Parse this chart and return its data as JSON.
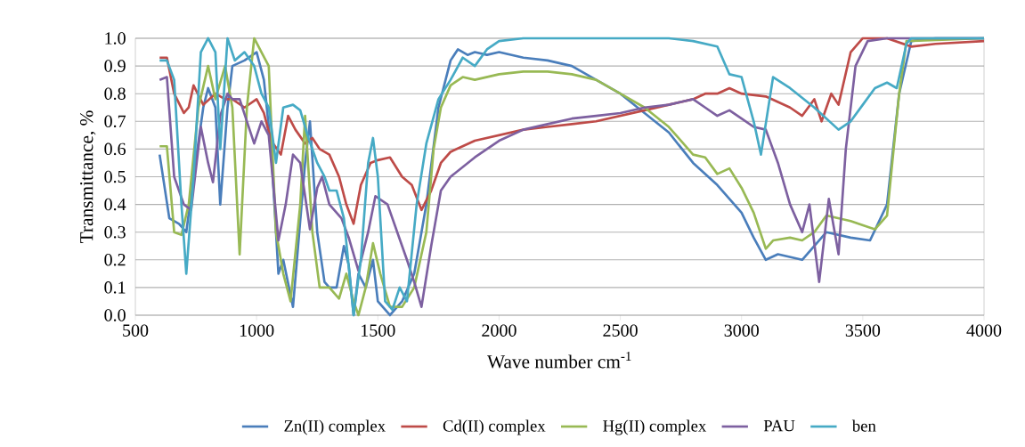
{
  "chart_data": {
    "type": "line",
    "xlabel": "Wave number cm$^{-1}$",
    "ylabel": "Transmittance, %",
    "xlim": [
      500,
      4000
    ],
    "ylim": [
      0,
      1
    ],
    "xticks": [
      500,
      1000,
      1500,
      2000,
      2500,
      3000,
      3500,
      4000
    ],
    "yticks": [
      {
        "value": 0,
        "label": "0.0"
      },
      {
        "value": 0.1,
        "label": "0.1"
      },
      {
        "value": 0.2,
        "label": "0.2"
      },
      {
        "value": 0.3,
        "label": "0.3"
      },
      {
        "value": 0.4,
        "label": "0.4"
      },
      {
        "value": 0.5,
        "label": "0.5"
      },
      {
        "value": 0.6,
        "label": "0.6"
      },
      {
        "value": 0.7,
        "label": "0.7"
      },
      {
        "value": 0.8,
        "label": "0.8"
      },
      {
        "value": 0.9,
        "label": "0.9"
      },
      {
        "value": 1,
        "label": "1.0"
      }
    ],
    "grid": "y",
    "legend": "bottom",
    "marker": "none",
    "line_style": "solid",
    "series": [
      {
        "name": "Zn(II) complex",
        "color": "#4a7ebb",
        "x": [
          600,
          640,
          680,
          710,
          740,
          780,
          800,
          830,
          850,
          880,
          900,
          950,
          1000,
          1030,
          1060,
          1090,
          1110,
          1150,
          1200,
          1220,
          1250,
          1280,
          1300,
          1330,
          1360,
          1380,
          1400,
          1420,
          1450,
          1480,
          1500,
          1550,
          1600,
          1650,
          1700,
          1750,
          1800,
          1830,
          1870,
          1900,
          1950,
          2000,
          2100,
          2200,
          2300,
          2400,
          2500,
          2600,
          2700,
          2800,
          2900,
          3000,
          3050,
          3100,
          3150,
          3250,
          3350,
          3450,
          3530,
          3600,
          3650,
          3700,
          3800,
          4000
        ],
        "values": [
          0.58,
          0.35,
          0.33,
          0.3,
          0.5,
          0.75,
          0.82,
          0.75,
          0.4,
          0.75,
          0.9,
          0.92,
          0.95,
          0.85,
          0.6,
          0.15,
          0.2,
          0.03,
          0.55,
          0.7,
          0.3,
          0.12,
          0.1,
          0.1,
          0.25,
          0.18,
          0.0,
          0.15,
          0.1,
          0.2,
          0.05,
          0.0,
          0.05,
          0.15,
          0.4,
          0.75,
          0.92,
          0.96,
          0.94,
          0.95,
          0.94,
          0.95,
          0.93,
          0.92,
          0.9,
          0.85,
          0.8,
          0.73,
          0.66,
          0.55,
          0.47,
          0.37,
          0.28,
          0.2,
          0.22,
          0.2,
          0.3,
          0.28,
          0.27,
          0.4,
          0.8,
          0.99,
          1.0,
          1.0
        ]
      },
      {
        "name": "Cd(II) complex",
        "color": "#be4b48",
        "x": [
          600,
          630,
          660,
          700,
          720,
          740,
          780,
          830,
          870,
          900,
          950,
          1000,
          1030,
          1060,
          1100,
          1130,
          1160,
          1200,
          1230,
          1260,
          1300,
          1340,
          1370,
          1400,
          1430,
          1470,
          1500,
          1550,
          1600,
          1640,
          1680,
          1720,
          1760,
          1800,
          1900,
          2000,
          2100,
          2200,
          2300,
          2400,
          2500,
          2600,
          2700,
          2800,
          2850,
          2900,
          2950,
          3000,
          3100,
          3150,
          3200,
          3250,
          3300,
          3330,
          3370,
          3400,
          3450,
          3500,
          3600,
          3700,
          3800,
          4000
        ],
        "values": [
          0.93,
          0.93,
          0.8,
          0.73,
          0.75,
          0.83,
          0.76,
          0.8,
          0.78,
          0.78,
          0.75,
          0.78,
          0.73,
          0.63,
          0.58,
          0.72,
          0.67,
          0.62,
          0.64,
          0.6,
          0.58,
          0.5,
          0.4,
          0.33,
          0.47,
          0.55,
          0.56,
          0.57,
          0.5,
          0.47,
          0.38,
          0.45,
          0.55,
          0.59,
          0.63,
          0.65,
          0.67,
          0.68,
          0.69,
          0.7,
          0.72,
          0.74,
          0.76,
          0.78,
          0.8,
          0.8,
          0.82,
          0.8,
          0.79,
          0.77,
          0.75,
          0.72,
          0.78,
          0.7,
          0.8,
          0.76,
          0.95,
          1.0,
          1.0,
          0.97,
          0.98,
          0.99
        ]
      },
      {
        "name": "Hg(II) complex",
        "color": "#98b954",
        "x": [
          600,
          630,
          660,
          690,
          720,
          760,
          800,
          830,
          870,
          900,
          930,
          960,
          990,
          1020,
          1050,
          1080,
          1110,
          1140,
          1180,
          1200,
          1230,
          1260,
          1300,
          1340,
          1370,
          1400,
          1420,
          1450,
          1480,
          1510,
          1550,
          1600,
          1650,
          1700,
          1730,
          1760,
          1800,
          1850,
          1900,
          2000,
          2100,
          2200,
          2300,
          2400,
          2500,
          2600,
          2700,
          2800,
          2850,
          2900,
          2950,
          3000,
          3050,
          3100,
          3130,
          3200,
          3250,
          3300,
          3350,
          3450,
          3550,
          3600,
          3650,
          3680,
          4000
        ],
        "values": [
          0.61,
          0.61,
          0.3,
          0.29,
          0.4,
          0.75,
          0.9,
          0.78,
          0.9,
          0.75,
          0.22,
          0.75,
          1.0,
          0.95,
          0.9,
          0.3,
          0.15,
          0.05,
          0.4,
          0.72,
          0.3,
          0.1,
          0.1,
          0.06,
          0.15,
          0.05,
          0.0,
          0.1,
          0.26,
          0.15,
          0.03,
          0.03,
          0.1,
          0.3,
          0.6,
          0.75,
          0.83,
          0.86,
          0.85,
          0.87,
          0.88,
          0.88,
          0.87,
          0.85,
          0.8,
          0.75,
          0.68,
          0.58,
          0.57,
          0.51,
          0.53,
          0.46,
          0.37,
          0.24,
          0.27,
          0.28,
          0.27,
          0.3,
          0.36,
          0.34,
          0.31,
          0.36,
          0.8,
          0.99,
          1.0
        ]
      },
      {
        "name": "PAU",
        "color": "#7d60a0",
        "x": [
          600,
          630,
          660,
          700,
          730,
          770,
          800,
          820,
          850,
          880,
          900,
          930,
          960,
          990,
          1020,
          1050,
          1090,
          1120,
          1150,
          1180,
          1220,
          1250,
          1270,
          1300,
          1350,
          1380,
          1420,
          1460,
          1490,
          1540,
          1580,
          1620,
          1650,
          1680,
          1720,
          1760,
          1800,
          1900,
          2000,
          2100,
          2200,
          2300,
          2400,
          2500,
          2600,
          2700,
          2750,
          2800,
          2850,
          2900,
          2950,
          3000,
          3050,
          3100,
          3150,
          3200,
          3250,
          3280,
          3320,
          3360,
          3400,
          3430,
          3470,
          3520,
          3600,
          4000
        ],
        "values": [
          0.85,
          0.86,
          0.5,
          0.4,
          0.38,
          0.68,
          0.55,
          0.48,
          0.72,
          0.8,
          0.78,
          0.78,
          0.7,
          0.62,
          0.7,
          0.65,
          0.27,
          0.4,
          0.58,
          0.55,
          0.31,
          0.46,
          0.5,
          0.4,
          0.35,
          0.28,
          0.16,
          0.3,
          0.43,
          0.4,
          0.3,
          0.2,
          0.12,
          0.03,
          0.25,
          0.45,
          0.5,
          0.57,
          0.63,
          0.67,
          0.69,
          0.71,
          0.72,
          0.73,
          0.75,
          0.76,
          0.77,
          0.78,
          0.75,
          0.72,
          0.74,
          0.71,
          0.68,
          0.67,
          0.55,
          0.4,
          0.3,
          0.4,
          0.12,
          0.42,
          0.22,
          0.6,
          0.9,
          0.99,
          1.0,
          1.0
        ]
      },
      {
        "name": "ben",
        "color": "#46aac5",
        "x": [
          600,
          630,
          660,
          690,
          710,
          740,
          770,
          800,
          830,
          850,
          880,
          910,
          950,
          990,
          1020,
          1050,
          1080,
          1110,
          1150,
          1180,
          1210,
          1250,
          1280,
          1300,
          1330,
          1360,
          1400,
          1430,
          1460,
          1480,
          1500,
          1530,
          1560,
          1590,
          1620,
          1660,
          1700,
          1750,
          1800,
          1850,
          1900,
          1950,
          2000,
          2100,
          2500,
          2700,
          2800,
          2900,
          2950,
          3000,
          3050,
          3080,
          3130,
          3200,
          3300,
          3400,
          3450,
          3500,
          3550,
          3600,
          3640,
          3680,
          3700,
          4000
        ],
        "values": [
          0.92,
          0.92,
          0.85,
          0.4,
          0.15,
          0.5,
          0.95,
          1.0,
          0.95,
          0.6,
          1.0,
          0.92,
          0.95,
          0.9,
          0.8,
          0.75,
          0.55,
          0.75,
          0.76,
          0.74,
          0.65,
          0.55,
          0.5,
          0.45,
          0.45,
          0.35,
          0.0,
          0.2,
          0.55,
          0.64,
          0.5,
          0.05,
          0.02,
          0.1,
          0.05,
          0.4,
          0.62,
          0.78,
          0.85,
          0.93,
          0.9,
          0.96,
          0.99,
          1.0,
          1.0,
          1.0,
          0.99,
          0.97,
          0.87,
          0.86,
          0.7,
          0.58,
          0.86,
          0.82,
          0.75,
          0.67,
          0.7,
          0.76,
          0.82,
          0.84,
          0.82,
          0.98,
          1.0,
          1.0
        ]
      }
    ]
  }
}
